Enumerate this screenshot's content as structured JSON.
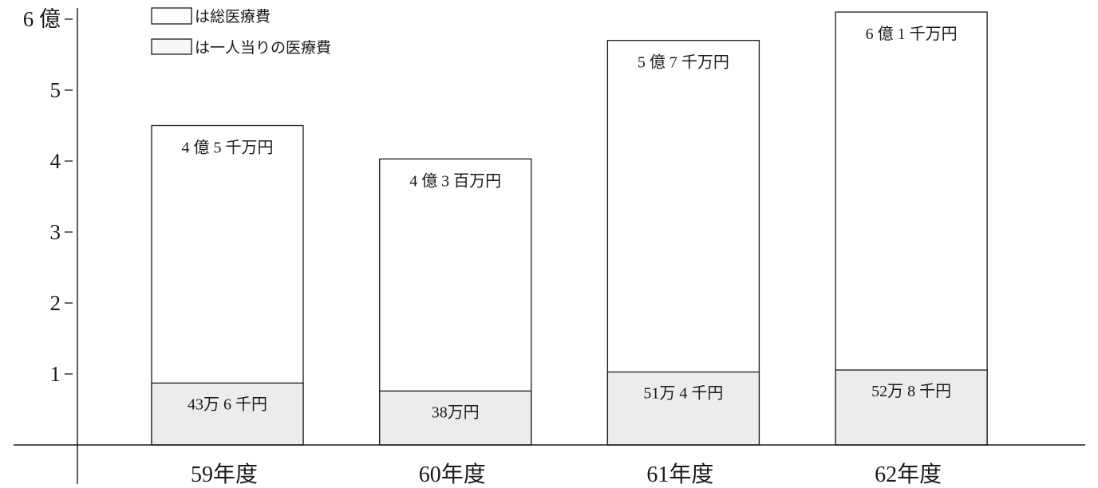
{
  "chart_data": {
    "type": "bar",
    "categories": [
      "59年度",
      "60年度",
      "61年度",
      "62年度"
    ],
    "series": [
      {
        "name": "総医療費",
        "values": [
          4.5,
          4.03,
          5.7,
          6.1
        ],
        "labels": [
          "4 億 5 千万円",
          "4 億 3 百万円",
          "5 億 7 千万円",
          "6 億 1 千万円"
        ],
        "color": "#ffffff"
      },
      {
        "name": "一人当りの医療費",
        "values": [
          43.6,
          38,
          51.4,
          52.8
        ],
        "labels": [
          "43万 6 千円",
          "38万円",
          "51万 4 千円",
          "52万 8 千円"
        ],
        "color": "#ececec"
      }
    ],
    "y_ticks": [
      {
        "value": 1,
        "label": "1"
      },
      {
        "value": 2,
        "label": "2"
      },
      {
        "value": 3,
        "label": "3"
      },
      {
        "value": 4,
        "label": "4"
      },
      {
        "value": 5,
        "label": "5"
      },
      {
        "value": 6,
        "label": "6 億"
      }
    ],
    "ylim": [
      0,
      6.2
    ],
    "grid": false,
    "legend": {
      "position": "top-left",
      "prefix": "は",
      "swatches": [
        "#ffffff",
        "#f7f7f7"
      ]
    }
  }
}
